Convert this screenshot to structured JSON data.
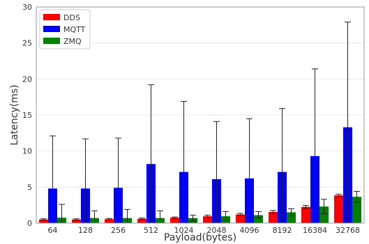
{
  "chart_data": {
    "type": "bar",
    "xlabel": "Payload(bytes)",
    "ylabel": "Latency(ms)",
    "ylim": [
      0,
      30
    ],
    "yticks": [
      0,
      5,
      10,
      15,
      20,
      25,
      30
    ],
    "grid": "horizontal",
    "legend_position": "top-left",
    "error_bars": true,
    "categories": [
      "64",
      "128",
      "256",
      "512",
      "1024",
      "2048",
      "4096",
      "8192",
      "16384",
      "32768"
    ],
    "series": [
      {
        "name": "DDS",
        "color": "#ff0000",
        "values": [
          0.5,
          0.5,
          0.55,
          0.6,
          0.75,
          0.95,
          1.2,
          1.55,
          2.25,
          3.85
        ],
        "error_upper": [
          0.6,
          0.6,
          0.65,
          0.7,
          0.85,
          1.1,
          1.35,
          1.75,
          2.45,
          4.0
        ],
        "error_lower": [
          0.4,
          0.4,
          0.45,
          0.5,
          0.65,
          0.8,
          1.05,
          1.35,
          2.05,
          3.7
        ]
      },
      {
        "name": "MQTT",
        "color": "#0000ff",
        "values": [
          4.8,
          4.8,
          4.9,
          8.2,
          7.1,
          6.1,
          6.2,
          7.1,
          9.3,
          13.3
        ],
        "error_upper": [
          12.1,
          11.7,
          11.8,
          19.2,
          16.9,
          14.1,
          14.5,
          15.9,
          21.4,
          27.9
        ],
        "error_lower": [
          0,
          0,
          0,
          0,
          0,
          0,
          0,
          0,
          0,
          0
        ]
      },
      {
        "name": "ZMQ",
        "color": "#008000",
        "values": [
          0.75,
          0.7,
          0.7,
          0.7,
          0.7,
          0.95,
          1.1,
          1.5,
          2.3,
          3.65
        ],
        "error_upper": [
          2.6,
          1.7,
          1.9,
          1.7,
          1.1,
          1.6,
          1.6,
          2.0,
          3.3,
          4.4
        ],
        "error_lower": [
          0,
          0,
          0,
          0,
          0.3,
          0.4,
          0.7,
          1.0,
          1.3,
          2.9
        ]
      }
    ]
  }
}
